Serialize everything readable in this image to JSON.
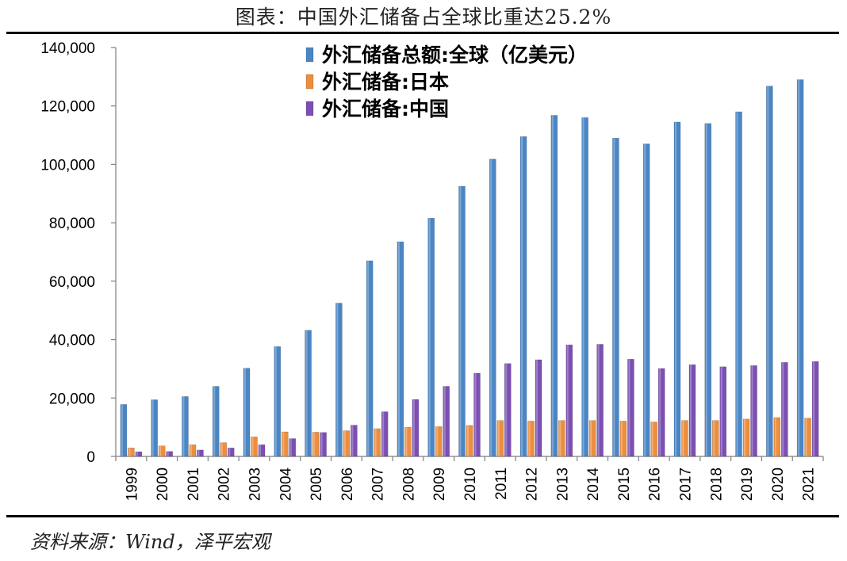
{
  "title": "图表：中国外汇储备占全球比重达25.2%",
  "source": "资料来源：Wind，泽平宏观",
  "chart_data": {
    "type": "bar",
    "title": "图表：中国外汇储备占全球比重达25.2%",
    "xlabel": "",
    "ylabel": "",
    "ylim": [
      0,
      140000
    ],
    "y_ticks": [
      0,
      20000,
      40000,
      60000,
      80000,
      100000,
      120000,
      140000
    ],
    "y_tick_labels": [
      "0",
      "20,000",
      "40,000",
      "60,000",
      "80,000",
      "100,000",
      "120,000",
      "140,000"
    ],
    "grid": false,
    "legend_position": "top-center",
    "categories": [
      "1999",
      "2000",
      "2001",
      "2002",
      "2003",
      "2004",
      "2005",
      "2006",
      "2007",
      "2008",
      "2009",
      "2010",
      "2011",
      "2012",
      "2013",
      "2014",
      "2015",
      "2016",
      "2017",
      "2018",
      "2019",
      "2020",
      "2021"
    ],
    "series": [
      {
        "name": "外汇储备总额:全球（亿美元）",
        "color": "#4a86c5",
        "values": [
          17800,
          19400,
          20500,
          24000,
          30200,
          37600,
          43200,
          52500,
          67000,
          73500,
          81600,
          92500,
          101800,
          109500,
          116800,
          116000,
          109000,
          107000,
          114500,
          114000,
          118000,
          126800,
          129000
        ]
      },
      {
        "name": "外汇储备:日本",
        "color": "#ed8e3e",
        "values": [
          2900,
          3600,
          4000,
          4700,
          6700,
          8400,
          8300,
          8800,
          9500,
          10000,
          10200,
          10600,
          12300,
          12100,
          12300,
          12300,
          12100,
          11800,
          12300,
          12300,
          12800,
          13300,
          13100
        ]
      },
      {
        "name": "外汇储备:中国",
        "color": "#7b4fb3",
        "values": [
          1600,
          1700,
          2200,
          2900,
          4000,
          6100,
          8200,
          10700,
          15300,
          19500,
          24000,
          28500,
          31800,
          33100,
          38200,
          38400,
          33300,
          30100,
          31400,
          30700,
          31100,
          32200,
          32500
        ]
      }
    ]
  }
}
